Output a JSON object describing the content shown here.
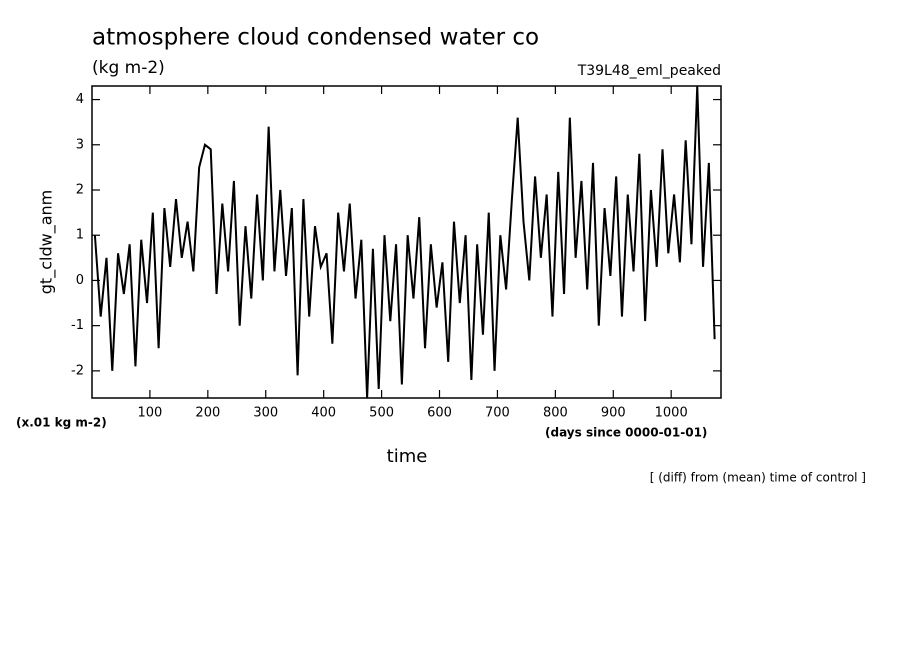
{
  "chart_data": {
    "type": "line",
    "title": "atmosphere cloud condensed water co",
    "subtitle": "(kg m-2)",
    "experiment": "T39L48_eml_peaked",
    "y_label": "gt_cldw_anm",
    "y_unit": "(x.01 kg m-2)",
    "x_label": "time",
    "x_unit": "(days since 0000-01-01)",
    "footer": "[ (diff) from (mean) time of control ]",
    "xlim": [
      0,
      1086
    ],
    "ylim": [
      -2.6,
      4.3
    ],
    "xticks": [
      100,
      200,
      300,
      400,
      500,
      600,
      700,
      800,
      900,
      1000
    ],
    "yticks": [
      -2,
      -1,
      0,
      1,
      2,
      3,
      4
    ],
    "color": "#000000",
    "x": [
      5,
      15,
      25,
      35,
      45,
      55,
      65,
      75,
      85,
      95,
      105,
      115,
      125,
      135,
      145,
      155,
      165,
      175,
      185,
      195,
      205,
      215,
      225,
      235,
      245,
      255,
      265,
      275,
      285,
      295,
      305,
      315,
      325,
      335,
      345,
      355,
      365,
      375,
      385,
      395,
      405,
      415,
      425,
      435,
      445,
      455,
      465,
      475,
      485,
      495,
      505,
      515,
      525,
      535,
      545,
      555,
      565,
      575,
      585,
      595,
      605,
      615,
      625,
      635,
      645,
      655,
      665,
      675,
      685,
      695,
      705,
      715,
      725,
      735,
      745,
      755,
      765,
      775,
      785,
      795,
      805,
      815,
      825,
      835,
      845,
      855,
      865,
      875,
      885,
      895,
      905,
      915,
      925,
      935,
      945,
      955,
      965,
      975,
      985,
      995,
      1005,
      1015,
      1025,
      1035,
      1045,
      1055,
      1065,
      1075
    ],
    "values": [
      1.0,
      -0.8,
      0.5,
      -2.0,
      0.6,
      -0.3,
      0.8,
      -1.9,
      0.9,
      -0.5,
      1.5,
      -1.5,
      1.6,
      0.3,
      1.8,
      0.5,
      1.3,
      0.2,
      2.5,
      3.0,
      2.9,
      -0.3,
      1.7,
      0.2,
      2.2,
      -1.0,
      1.2,
      -0.4,
      1.9,
      0.0,
      3.4,
      0.2,
      2.0,
      0.1,
      1.6,
      -2.1,
      1.8,
      -0.8,
      1.2,
      0.3,
      0.6,
      -1.4,
      1.5,
      0.2,
      1.7,
      -0.4,
      0.9,
      -2.6,
      0.7,
      -2.4,
      1.0,
      -0.9,
      0.8,
      -2.3,
      1.0,
      -0.4,
      1.4,
      -1.5,
      0.8,
      -0.6,
      0.4,
      -1.8,
      1.3,
      -0.5,
      1.0,
      -2.2,
      0.8,
      -1.2,
      1.5,
      -2.0,
      1.0,
      -0.2,
      1.8,
      3.6,
      1.3,
      0.0,
      2.3,
      0.5,
      1.9,
      -0.8,
      2.4,
      -0.3,
      3.6,
      0.5,
      2.2,
      -0.2,
      2.6,
      -1.0,
      1.6,
      0.1,
      2.3,
      -0.8,
      1.9,
      0.2,
      2.8,
      -0.9,
      2.0,
      0.3,
      2.9,
      0.6,
      1.9,
      0.4,
      3.1,
      0.8,
      4.3,
      0.3,
      2.6,
      -1.3
    ]
  }
}
